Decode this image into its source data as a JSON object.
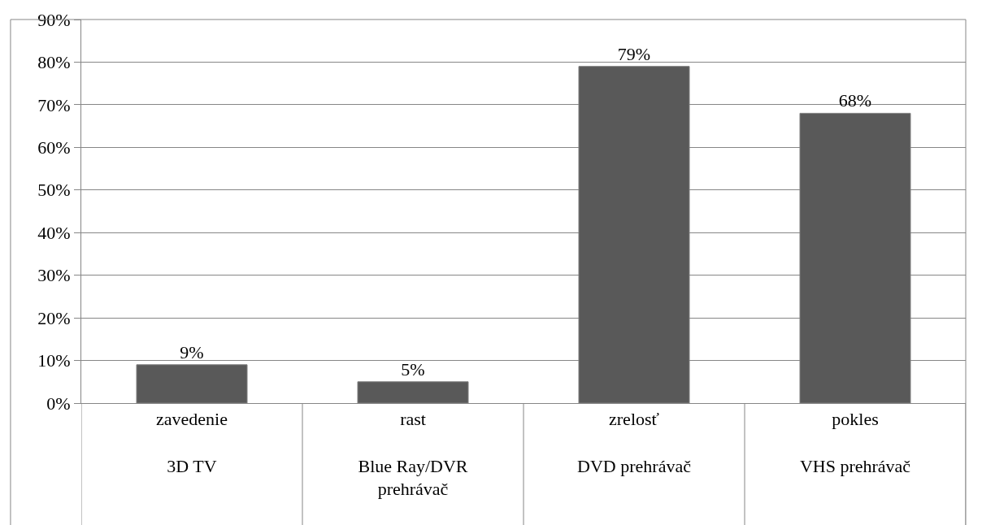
{
  "chart_data": {
    "type": "bar",
    "categories": [
      "zavedenie\n\n3D TV",
      "rast\n\nBlue Ray/DVR\nprehrávač",
      "zrelosť\n\nDVD prehrávač",
      "pokles\n\nVHS prehrávač"
    ],
    "values": [
      9,
      5,
      79,
      68
    ],
    "value_labels": [
      "9%",
      "5%",
      "79%",
      "68%"
    ],
    "color": "#595959",
    "ylim": [
      0,
      90
    ],
    "yticks": [
      {
        "value": 0,
        "label": "0%"
      },
      {
        "value": 10,
        "label": "10%"
      },
      {
        "value": 20,
        "label": "20%"
      },
      {
        "value": 30,
        "label": "30%"
      },
      {
        "value": 40,
        "label": "40%"
      },
      {
        "value": 50,
        "label": "50%"
      },
      {
        "value": 60,
        "label": "60%"
      },
      {
        "value": 70,
        "label": "70%"
      },
      {
        "value": 80,
        "label": "80%"
      },
      {
        "value": 90,
        "label": "90%"
      }
    ],
    "grid": "y"
  }
}
